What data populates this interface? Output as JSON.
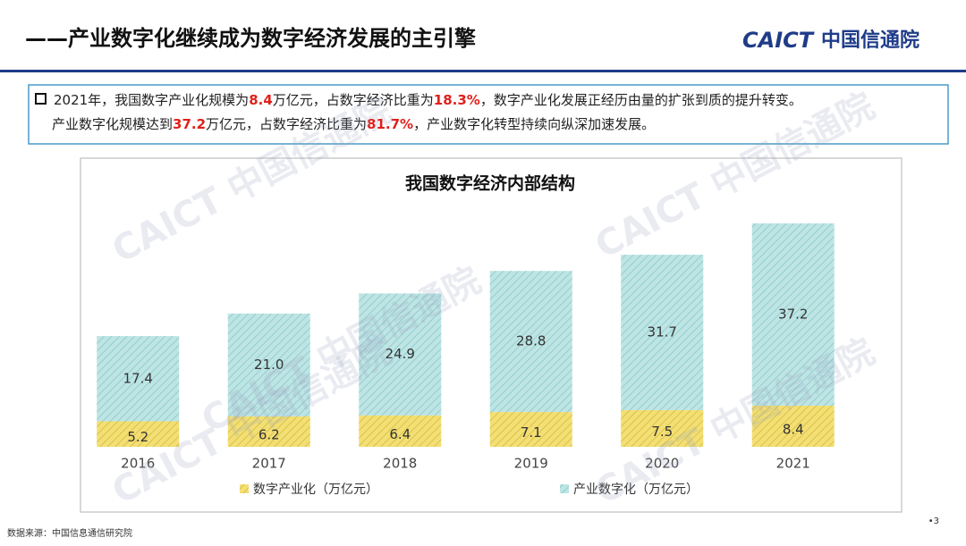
{
  "header": {
    "title": "——产业数字化继续成为数字经济发展的主引擎",
    "logo_en": "CAICT",
    "logo_cn": "中国信通院"
  },
  "summary": {
    "lines": [
      [
        "2021年，我国数字产业化规模为",
        "8.4",
        "万亿元，占数字经济比重为",
        "18.3%",
        "，数字产业化发展正经历由量的扩张到质的提升转变。"
      ],
      [
        "产业数字化规模达到",
        "37.2",
        "万亿元，占数字经济比重为",
        "81.7%",
        "，产业数字化转型持续向纵深加速发展。"
      ]
    ]
  },
  "watermark": "CAICT 中国信通院",
  "chart_data": {
    "type": "stacked_bar",
    "title": "我国数字经济内部结构",
    "categories": [
      "2016",
      "2017",
      "2018",
      "2019",
      "2020",
      "2021"
    ],
    "series": [
      {
        "name": "数字产业化（万亿元）",
        "color": "#f3df74",
        "values": [
          5.2,
          6.2,
          6.4,
          7.1,
          7.5,
          8.4
        ]
      },
      {
        "name": "产业数字化（万亿元）",
        "color": "#bfe4e4",
        "values": [
          17.4,
          21.0,
          24.9,
          28.8,
          31.7,
          37.2
        ],
        "value_labels": [
          "17.4",
          "21.0",
          "24.9",
          "28.8",
          "31.7",
          "37.2"
        ]
      }
    ]
  },
  "footer": {
    "source": "数据来源：中国信息通信研究院",
    "page": "•3"
  }
}
